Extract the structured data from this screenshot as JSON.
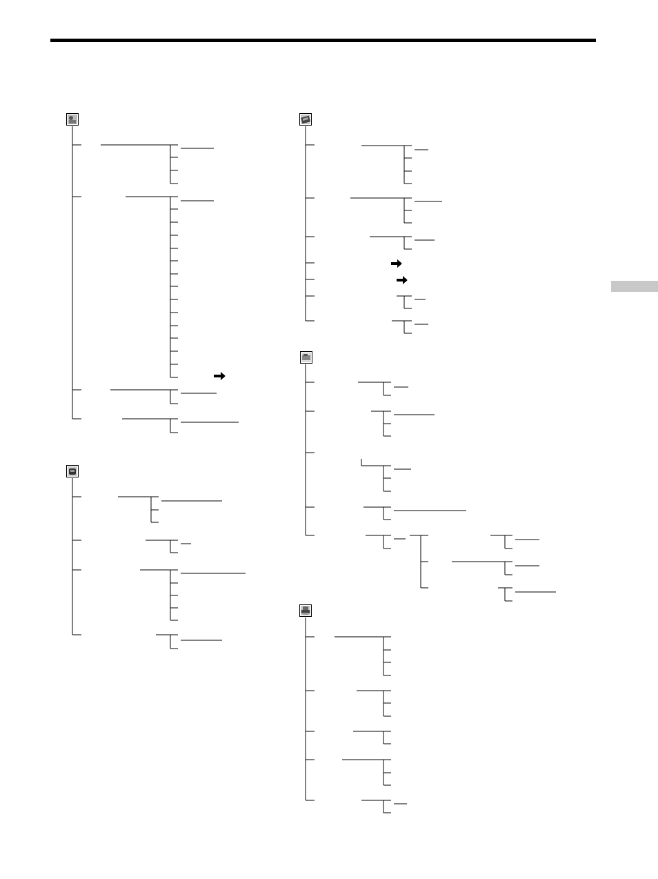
{
  "page": {
    "header_rule": "present",
    "side_tab": "present"
  },
  "menu_groups": [
    {
      "id": "camera-settings",
      "icon": "camera-settings-icon"
    },
    {
      "id": "player-settings",
      "icon": "player-settings-icon"
    },
    {
      "id": "tape-settings",
      "icon": "cassette-tape-icon"
    },
    {
      "id": "video-edit-settings",
      "icon": "video-edit-icon"
    },
    {
      "id": "etc-settings",
      "icon": "printer-setup-icon"
    }
  ],
  "colors": {
    "lines": "#000000",
    "icon_fill": "#8a8a8a",
    "side_tab": "#c8c8c8"
  }
}
